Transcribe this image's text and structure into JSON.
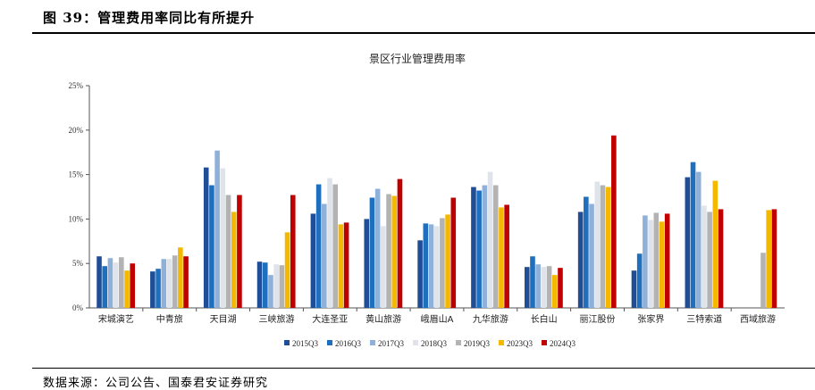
{
  "header": {
    "figure_title": "图 39：管理费用率同比有所提升"
  },
  "footer": {
    "source": "数据来源：公司公告、国泰君安证券研究"
  },
  "chart_data": {
    "type": "bar",
    "title": "景区行业管理费用率",
    "xlabel": "",
    "ylabel": "",
    "ylim": [
      0,
      25
    ],
    "yticks": [
      "0%",
      "5%",
      "10%",
      "15%",
      "20%",
      "25%"
    ],
    "grid": false,
    "legend_position": "bottom",
    "categories": [
      "宋城演艺",
      "中青旅",
      "天目湖",
      "三峡旅游",
      "大连圣亚",
      "黄山旅游",
      "峨眉山A",
      "九华旅游",
      "长白山",
      "丽江股份",
      "张家界",
      "三特索道",
      "西域旅游"
    ],
    "series": [
      {
        "name": "2015Q3",
        "color": "#1f4e96",
        "values": [
          5.8,
          4.1,
          15.8,
          5.2,
          10.6,
          10.0,
          7.6,
          13.6,
          4.6,
          10.8,
          4.2,
          14.7,
          null
        ]
      },
      {
        "name": "2016Q3",
        "color": "#1f6fbf",
        "values": [
          4.7,
          4.4,
          13.8,
          5.1,
          13.9,
          12.4,
          9.5,
          13.2,
          5.8,
          12.5,
          6.1,
          16.4,
          null
        ]
      },
      {
        "name": "2017Q3",
        "color": "#8fb1d9",
        "values": [
          5.6,
          5.5,
          17.7,
          3.7,
          11.7,
          13.4,
          9.4,
          13.8,
          4.9,
          11.7,
          10.4,
          15.3,
          null
        ]
      },
      {
        "name": "2018Q3",
        "color": "#dfe3ea",
        "values": [
          5.1,
          5.5,
          15.7,
          4.9,
          14.6,
          9.2,
          9.2,
          15.3,
          4.6,
          14.2,
          9.9,
          11.5,
          null
        ]
      },
      {
        "name": "2019Q3",
        "color": "#b3b3b3",
        "values": [
          5.7,
          5.9,
          12.7,
          4.8,
          13.9,
          12.8,
          10.1,
          13.8,
          4.7,
          13.8,
          10.7,
          10.8,
          6.2
        ]
      },
      {
        "name": "2023Q3",
        "color": "#f5b800",
        "values": [
          4.2,
          6.8,
          10.8,
          8.5,
          9.4,
          12.6,
          10.5,
          11.3,
          3.7,
          13.6,
          9.7,
          14.3,
          11.0
        ]
      },
      {
        "name": "2024Q3",
        "color": "#c00000",
        "values": [
          5.0,
          5.8,
          12.7,
          12.7,
          9.6,
          14.5,
          12.4,
          11.6,
          4.5,
          19.4,
          10.6,
          11.1,
          11.1
        ]
      }
    ]
  }
}
